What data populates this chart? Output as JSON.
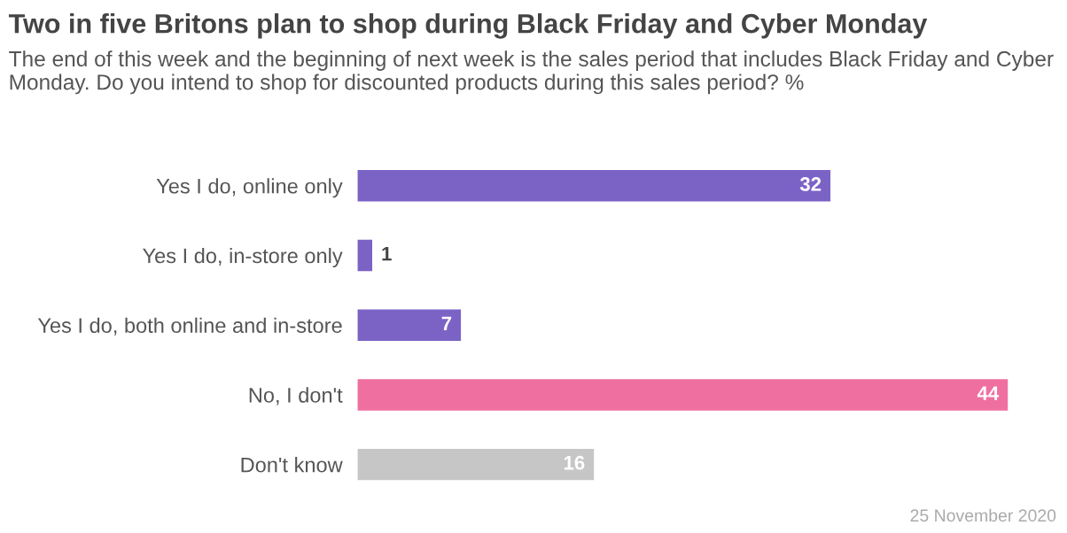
{
  "chart_data": {
    "type": "bar",
    "orientation": "horizontal",
    "title": "Two in five Britons plan to shop during Black Friday and Cyber Monday",
    "subtitle": "The end of this week and the beginning of next week is the sales period that includes Black Friday and Cyber Monday. Do you intend to shop for discounted products during this sales period? %",
    "categories": [
      "Yes I do, online only",
      "Yes I do, in-store only",
      "Yes I do, both online and in-store",
      "No, I don't",
      "Don't know"
    ],
    "values": [
      32,
      1,
      7,
      44,
      16
    ],
    "colors": [
      "#7b63c6",
      "#7b63c6",
      "#7b63c6",
      "#ef6fa0",
      "#c6c6c6"
    ],
    "data_labels": true,
    "annotations": [
      "25 November 2020"
    ]
  }
}
